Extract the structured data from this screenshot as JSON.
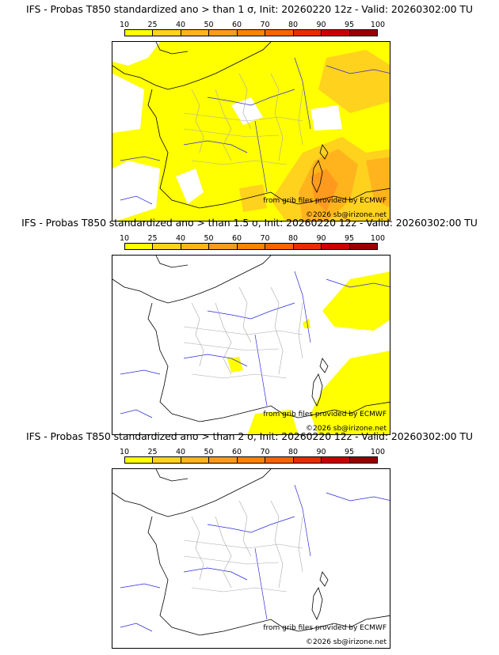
{
  "legend": {
    "labels": [
      "10",
      "25",
      "40",
      "50",
      "60",
      "70",
      "80",
      "90",
      "95",
      "100"
    ],
    "colors": [
      "#ffff00",
      "#ffd21e",
      "#ffb41e",
      "#ff9a1e",
      "#ff8200",
      "#fa6400",
      "#e62d00",
      "#c80000",
      "#960000",
      "#5a0000"
    ]
  },
  "panels": [
    {
      "title": "IFS - Probas T850  standardized ano > than 1 σ, Init: 20260220 12z - Valid: 20260302:00 TU",
      "credit_source": "from grib files provided by ECMWF",
      "credit_copyright": "©2026 sb@irizone.net"
    },
    {
      "title": "IFS - Probas T850  standardized ano > than 1.5 σ, Init: 20260220 12z - Valid: 20260302:00 TU",
      "credit_source": "from grib files provided by ECMWF",
      "credit_copyright": "©2026 sb@irizone.net"
    },
    {
      "title": "IFS - Probas T850  standardized ano > than 2 σ, Init: 20260220 12z - Valid: 20260302:00 TU",
      "credit_source": "from grib files provided by ECMWF",
      "credit_copyright": "©2026 sb@irizone.net"
    }
  ],
  "colors": {
    "coast": "#000000",
    "rivers": "#2a2ad8",
    "borders": "#a8a8a8",
    "low": "#ffff00",
    "mid": "#ffd21e",
    "high": "#ff9a1e"
  }
}
